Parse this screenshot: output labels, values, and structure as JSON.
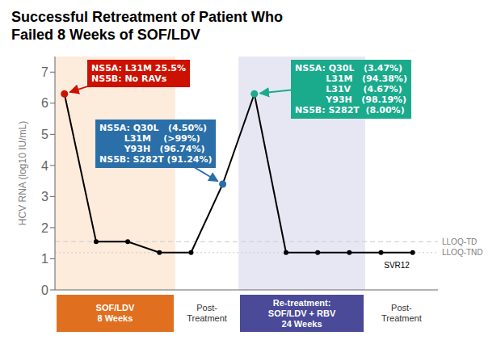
{
  "chart_data": {
    "type": "line",
    "title": "Successful Retreatment of Patient Who\nFailed 8 Weeks of SOF/LDV",
    "ylabel": "HCV RNA (log10 IU/mL)",
    "x": [
      0,
      1,
      2,
      3,
      4,
      5,
      6,
      7,
      8,
      9,
      10,
      11
    ],
    "values": [
      6.3,
      1.55,
      1.55,
      1.2,
      1.2,
      3.4,
      6.3,
      1.2,
      1.2,
      1.2,
      1.2,
      1.2
    ],
    "color": "#000000",
    "marker": "dot",
    "xlim": [
      -0.3,
      11.8
    ],
    "xticks": [],
    "ylim": [
      0,
      7.5
    ],
    "yticks": [
      0,
      1,
      2,
      3,
      4,
      5,
      6,
      7
    ],
    "tick_labels": "y",
    "grid": false,
    "reference_lines": [
      {
        "y": 1.55,
        "label": "LLOQ-TD",
        "line_style": "dashed"
      },
      {
        "y": 1.2,
        "label": "LLOQ-TND",
        "line_style": "dotted"
      }
    ],
    "special_points": [
      {
        "x": 0,
        "y": 6.3,
        "color": "#cc1100"
      },
      {
        "x": 5,
        "y": 3.4,
        "color": "#2a6fa8"
      },
      {
        "x": 6,
        "y": 6.3,
        "color": "#1aaa8c"
      }
    ],
    "zones": [
      {
        "xmin": -0.3,
        "xmax": 3.5,
        "label": "SOF/LDV\n8 Weeks",
        "color": "#e07020",
        "background_color": "#f4a460"
      },
      {
        "xmin": 3.5,
        "xmax": 5.5,
        "label": "Post-\nTreatment"
      },
      {
        "xmin": 5.5,
        "xmax": 9.5,
        "label": "Re-treatment:\nSOF/LDV + RBV\n24 Weeks",
        "color": "#4a4a99",
        "background_color": "#9090cc"
      },
      {
        "xmin": 9.5,
        "xmax": 11.8,
        "label": "Post-\nTreatment"
      }
    ],
    "annotations": [
      {
        "text": "NS5A: L31M 25.5%\nNS5B: No RAVs",
        "x": 0,
        "y": 6.3,
        "color": "#cc1100"
      },
      {
        "text": "NS5A: Q30L   (4.50%)\n        L31M    (>99%)\n        Y93H   (96.74%)\nNS5B: S282T (91.24%)",
        "x": 5,
        "y": 3.4,
        "color": "#2a6fa8"
      },
      {
        "text": "NS5A: Q30L   (3.47%)\n          L31M   (94.38%)\n          L31V    (4.67%)\n          Y93H   (98.19%)\nNS5B: S282T  (8.00%)",
        "x": 6,
        "y": 6.3,
        "color": "#1aaa8c"
      },
      {
        "text": "SVR12",
        "x": 10.5,
        "y": 1.05
      }
    ]
  }
}
